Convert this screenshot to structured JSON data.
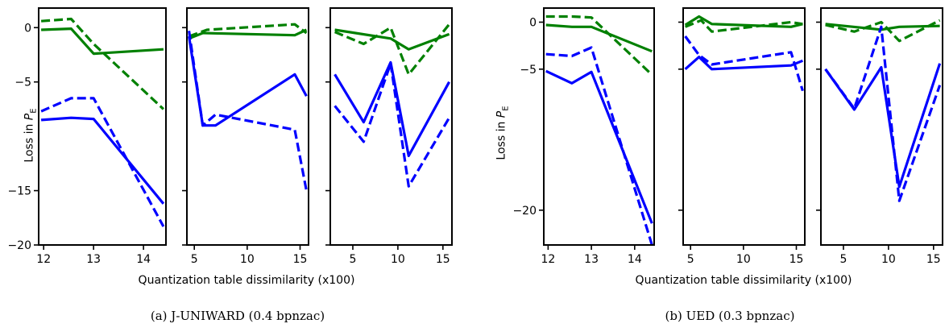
{
  "figure": {
    "panels": [
      {
        "ylabel_text": "Loss in ",
        "ylabel_sym": "P",
        "ylabel_sub": "E",
        "xlabel": "Quantization table dissimilarity (x100)",
        "caption": "(a) J-UNIWARD (0.4 bpnzac)"
      },
      {
        "ylabel_text": "Loss in ",
        "ylabel_sym": "P",
        "ylabel_sub": "E",
        "xlabel": "Quantization table dissimilarity (x100)",
        "caption": "(b) UED (0.3 bpnzac)"
      }
    ]
  },
  "chart_data": [
    {
      "type": "line",
      "group": "a",
      "ylim": [
        -20,
        1.8
      ],
      "xlim": [
        11.9,
        14.45
      ],
      "xticks": [
        12,
        13,
        14
      ],
      "yticks": [
        0,
        -5,
        -15,
        -20
      ],
      "ytick_labels": true,
      "series": [
        {
          "color": "#008000",
          "style": "solid",
          "x": [
            11.95,
            12.55,
            13.0,
            14.4
          ],
          "y": [
            -0.2,
            -0.1,
            -2.4,
            -2.0
          ]
        },
        {
          "color": "#008000",
          "style": "dashed",
          "x": [
            11.95,
            12.55,
            13.0,
            14.4
          ],
          "y": [
            0.6,
            0.8,
            -1.5,
            -7.5
          ]
        },
        {
          "color": "#0000ff",
          "style": "solid",
          "x": [
            11.95,
            12.55,
            13.0,
            14.4
          ],
          "y": [
            -8.5,
            -8.3,
            -8.4,
            -16.2
          ]
        },
        {
          "color": "#0000ff",
          "style": "dashed",
          "x": [
            11.95,
            12.55,
            13.0,
            14.4
          ],
          "y": [
            -7.7,
            -6.5,
            -6.5,
            -18.3
          ]
        }
      ]
    },
    {
      "type": "line",
      "group": "a",
      "ylim": [
        -20,
        1.8
      ],
      "xlim": [
        4.3,
        15.8
      ],
      "xticks": [
        5,
        10,
        15
      ],
      "yticks": [
        0,
        -5,
        -15,
        -20
      ],
      "ytick_labels": false,
      "series": [
        {
          "color": "#008000",
          "style": "solid",
          "x": [
            4.5,
            5.8,
            14.5,
            15.6
          ],
          "y": [
            -1.0,
            -0.5,
            -0.7,
            -0.2
          ]
        },
        {
          "color": "#008000",
          "style": "dashed",
          "x": [
            4.5,
            6.2,
            14.5,
            15.6
          ],
          "y": [
            -0.8,
            -0.2,
            0.3,
            -0.5
          ]
        },
        {
          "color": "#0000ff",
          "style": "solid",
          "x": [
            4.5,
            5.8,
            7.0,
            14.5,
            15.6
          ],
          "y": [
            -0.8,
            -9.0,
            -9.0,
            -4.3,
            -6.3
          ]
        },
        {
          "color": "#0000ff",
          "style": "dashed",
          "x": [
            4.5,
            5.8,
            7.0,
            14.5,
            15.6
          ],
          "y": [
            -0.3,
            -9.0,
            -8.0,
            -9.4,
            -15.0
          ]
        }
      ]
    },
    {
      "type": "line",
      "group": "a",
      "ylim": [
        -20,
        1.8
      ],
      "xlim": [
        2.5,
        16.0
      ],
      "xticks": [
        5,
        10,
        15
      ],
      "yticks": [
        0,
        -5,
        -15,
        -20
      ],
      "ytick_labels": false,
      "series": [
        {
          "color": "#008000",
          "style": "solid",
          "x": [
            3.0,
            9.2,
            11.2,
            15.7
          ],
          "y": [
            -0.2,
            -1.0,
            -2.0,
            -0.6
          ]
        },
        {
          "color": "#008000",
          "style": "dashed",
          "x": [
            3.0,
            6.2,
            9.2,
            11.2,
            15.7
          ],
          "y": [
            -0.4,
            -1.5,
            0.0,
            -4.3,
            0.3
          ]
        },
        {
          "color": "#0000ff",
          "style": "solid",
          "x": [
            3.0,
            6.2,
            9.2,
            11.2,
            15.7
          ],
          "y": [
            -4.3,
            -8.7,
            -3.2,
            -11.8,
            -5.0
          ]
        },
        {
          "color": "#0000ff",
          "style": "dashed",
          "x": [
            3.0,
            6.2,
            9.2,
            11.2,
            15.7
          ],
          "y": [
            -7.2,
            -10.5,
            -3.3,
            -14.6,
            -8.3
          ]
        }
      ]
    },
    {
      "type": "line",
      "group": "b",
      "ylim": [
        -23.7,
        1.5
      ],
      "xlim": [
        11.9,
        14.45
      ],
      "xticks": [
        12,
        13,
        14
      ],
      "yticks": [
        0,
        -5,
        -20
      ],
      "ytick_labels": true,
      "series": [
        {
          "color": "#008000",
          "style": "solid",
          "x": [
            11.95,
            12.55,
            13.0,
            14.4
          ],
          "y": [
            -0.3,
            -0.5,
            -0.5,
            -3.1
          ]
        },
        {
          "color": "#008000",
          "style": "dashed",
          "x": [
            11.95,
            12.55,
            13.0,
            14.4
          ],
          "y": [
            0.6,
            0.6,
            0.5,
            -5.6
          ]
        },
        {
          "color": "#0000ff",
          "style": "solid",
          "x": [
            11.95,
            12.55,
            13.0,
            14.4
          ],
          "y": [
            -5.2,
            -6.5,
            -5.3,
            -21.4
          ]
        },
        {
          "color": "#0000ff",
          "style": "dashed",
          "x": [
            11.95,
            12.55,
            13.0,
            14.4
          ],
          "y": [
            -3.4,
            -3.6,
            -2.7,
            -23.7
          ]
        }
      ]
    },
    {
      "type": "line",
      "group": "b",
      "ylim": [
        -23.7,
        1.5
      ],
      "xlim": [
        4.3,
        15.8
      ],
      "xticks": [
        5,
        10,
        15
      ],
      "yticks": [
        0,
        -5,
        -20
      ],
      "ytick_labels": false,
      "series": [
        {
          "color": "#008000",
          "style": "solid",
          "x": [
            4.5,
            5.8,
            7.0,
            14.5,
            15.6
          ],
          "y": [
            -0.3,
            0.6,
            -0.2,
            -0.5,
            -0.2
          ]
        },
        {
          "color": "#008000",
          "style": "dashed",
          "x": [
            4.5,
            6.0,
            7.0,
            14.5,
            15.6
          ],
          "y": [
            -0.5,
            0.2,
            -1.0,
            0.0,
            -0.2
          ]
        },
        {
          "color": "#0000ff",
          "style": "solid",
          "x": [
            4.5,
            5.8,
            7.0,
            14.5,
            15.6
          ],
          "y": [
            -5.0,
            -3.7,
            -5.0,
            -4.6,
            -4.1
          ]
        },
        {
          "color": "#0000ff",
          "style": "dashed",
          "x": [
            4.5,
            5.8,
            7.0,
            14.5,
            15.6
          ],
          "y": [
            -1.5,
            -3.5,
            -4.5,
            -3.2,
            -7.3
          ]
        }
      ]
    },
    {
      "type": "line",
      "group": "b",
      "ylim": [
        -23.7,
        1.5
      ],
      "xlim": [
        2.5,
        16.0
      ],
      "xticks": [
        5,
        10,
        15
      ],
      "yticks": [
        0,
        -5,
        -20
      ],
      "ytick_labels": false,
      "series": [
        {
          "color": "#008000",
          "style": "solid",
          "x": [
            3.0,
            9.2,
            11.2,
            15.7
          ],
          "y": [
            -0.2,
            -0.8,
            -0.5,
            -0.4
          ]
        },
        {
          "color": "#008000",
          "style": "dashed",
          "x": [
            3.0,
            6.2,
            9.2,
            11.2,
            15.7
          ],
          "y": [
            -0.3,
            -1.0,
            0.0,
            -2.0,
            0.2
          ]
        },
        {
          "color": "#0000ff",
          "style": "solid",
          "x": [
            3.0,
            6.2,
            9.2,
            11.2,
            15.7
          ],
          "y": [
            -5.0,
            -9.3,
            -4.8,
            -17.5,
            -4.4
          ]
        },
        {
          "color": "#0000ff",
          "style": "dashed",
          "x": [
            3.0,
            6.2,
            9.2,
            11.2,
            15.7
          ],
          "y": [
            -5.0,
            -9.2,
            -0.5,
            -19.0,
            -6.7
          ]
        }
      ]
    }
  ]
}
